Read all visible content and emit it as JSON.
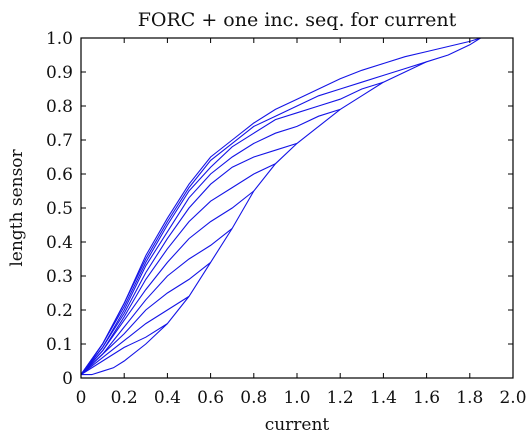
{
  "chart_data": {
    "type": "line",
    "title": "FORC + one inc. seq. for current",
    "xlabel": "current",
    "ylabel": "length sensor",
    "xlim": [
      0,
      2.0
    ],
    "ylim": [
      0,
      1.0
    ],
    "x_ticks": [
      "0",
      "0.2",
      "0.4",
      "0.6",
      "0.8",
      "1.0",
      "1.2",
      "1.4",
      "1.6",
      "1.8",
      "2.0"
    ],
    "y_ticks": [
      "0",
      "0.1",
      "0.2",
      "0.3",
      "0.4",
      "0.5",
      "0.6",
      "0.7",
      "0.8",
      "0.9",
      "1.0"
    ],
    "grid": false,
    "legend": "none",
    "color": "#1414e6",
    "series": [
      {
        "role": "ascending-envelope",
        "x": [
          0,
          0.05,
          0.1,
          0.15,
          0.2,
          0.3,
          0.4,
          0.5,
          0.6,
          0.7,
          0.8,
          0.9,
          1.0,
          1.1,
          1.2,
          1.3,
          1.4,
          1.5,
          1.6,
          1.7,
          1.8,
          1.85
        ],
        "y": [
          0.01,
          0.01,
          0.02,
          0.03,
          0.05,
          0.1,
          0.16,
          0.24,
          0.34,
          0.44,
          0.55,
          0.63,
          0.69,
          0.74,
          0.79,
          0.83,
          0.87,
          0.9,
          0.93,
          0.95,
          0.98,
          1.0
        ]
      },
      {
        "role": "descending-envelope",
        "x": [
          0,
          0.1,
          0.2,
          0.3,
          0.4,
          0.5,
          0.6,
          0.7,
          0.8,
          0.9,
          1.0,
          1.1,
          1.2,
          1.3,
          1.4,
          1.5,
          1.6,
          1.7,
          1.8,
          1.85
        ],
        "y": [
          0.01,
          0.1,
          0.22,
          0.36,
          0.47,
          0.57,
          0.65,
          0.7,
          0.75,
          0.79,
          0.82,
          0.85,
          0.88,
          0.905,
          0.925,
          0.945,
          0.96,
          0.975,
          0.99,
          1.0
        ]
      },
      {
        "role": "forc",
        "x": [
          0,
          0.1,
          0.2,
          0.3,
          0.4
        ],
        "y": [
          0.01,
          0.05,
          0.09,
          0.12,
          0.16
        ]
      },
      {
        "role": "forc",
        "x": [
          0,
          0.1,
          0.2,
          0.3,
          0.4,
          0.5
        ],
        "y": [
          0.01,
          0.06,
          0.11,
          0.16,
          0.2,
          0.24
        ]
      },
      {
        "role": "forc",
        "x": [
          0,
          0.1,
          0.2,
          0.3,
          0.4,
          0.5,
          0.6
        ],
        "y": [
          0.01,
          0.07,
          0.13,
          0.2,
          0.25,
          0.29,
          0.34
        ]
      },
      {
        "role": "forc",
        "x": [
          0,
          0.1,
          0.2,
          0.3,
          0.4,
          0.5,
          0.6,
          0.7
        ],
        "y": [
          0.01,
          0.07,
          0.15,
          0.23,
          0.3,
          0.35,
          0.39,
          0.44
        ]
      },
      {
        "role": "forc",
        "x": [
          0,
          0.1,
          0.2,
          0.3,
          0.4,
          0.5,
          0.6,
          0.7,
          0.8
        ],
        "y": [
          0.01,
          0.08,
          0.17,
          0.26,
          0.34,
          0.41,
          0.46,
          0.5,
          0.55
        ]
      },
      {
        "role": "forc",
        "x": [
          0,
          0.1,
          0.2,
          0.3,
          0.4,
          0.5,
          0.6,
          0.7,
          0.8,
          0.9
        ],
        "y": [
          0.01,
          0.08,
          0.18,
          0.29,
          0.38,
          0.46,
          0.52,
          0.56,
          0.6,
          0.63
        ]
      },
      {
        "role": "forc",
        "x": [
          0,
          0.1,
          0.2,
          0.3,
          0.4,
          0.5,
          0.6,
          0.7,
          0.8,
          0.9,
          1.0
        ],
        "y": [
          0.01,
          0.09,
          0.19,
          0.31,
          0.41,
          0.5,
          0.57,
          0.62,
          0.65,
          0.67,
          0.69
        ]
      },
      {
        "role": "forc",
        "x": [
          0,
          0.1,
          0.2,
          0.3,
          0.4,
          0.5,
          0.6,
          0.7,
          0.8,
          0.9,
          1.0,
          1.1,
          1.2
        ],
        "y": [
          0.01,
          0.09,
          0.2,
          0.33,
          0.43,
          0.53,
          0.6,
          0.65,
          0.69,
          0.72,
          0.74,
          0.77,
          0.79
        ]
      },
      {
        "role": "forc",
        "x": [
          0,
          0.1,
          0.2,
          0.3,
          0.4,
          0.5,
          0.6,
          0.7,
          0.8,
          0.9,
          1.0,
          1.1,
          1.2,
          1.3,
          1.4
        ],
        "y": [
          0.01,
          0.1,
          0.21,
          0.34,
          0.45,
          0.55,
          0.62,
          0.68,
          0.72,
          0.76,
          0.78,
          0.8,
          0.82,
          0.85,
          0.87
        ]
      },
      {
        "role": "forc",
        "x": [
          0,
          0.1,
          0.2,
          0.3,
          0.4,
          0.5,
          0.6,
          0.7,
          0.8,
          0.9,
          1.0,
          1.1,
          1.2,
          1.3,
          1.4,
          1.5,
          1.6
        ],
        "y": [
          0.01,
          0.1,
          0.22,
          0.35,
          0.46,
          0.56,
          0.64,
          0.69,
          0.74,
          0.77,
          0.8,
          0.83,
          0.85,
          0.87,
          0.89,
          0.91,
          0.93
        ]
      }
    ]
  }
}
